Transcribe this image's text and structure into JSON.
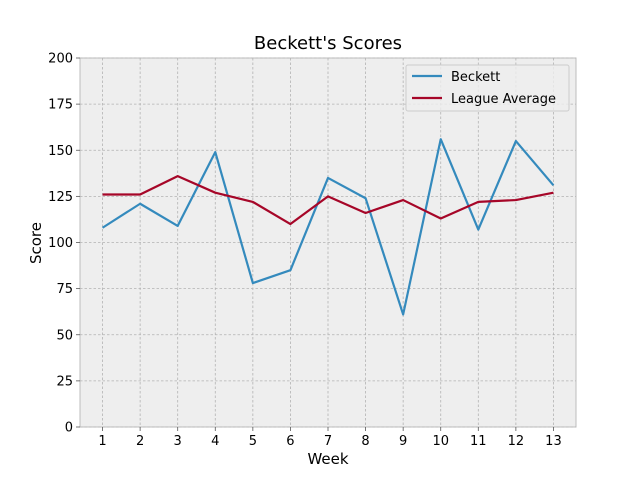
{
  "chart_data": {
    "type": "line",
    "title": "Beckett's Scores",
    "xlabel": "Week",
    "ylabel": "Score",
    "x": [
      1,
      2,
      3,
      4,
      5,
      6,
      7,
      8,
      9,
      10,
      11,
      12,
      13
    ],
    "xlim": [
      0.4,
      13.6
    ],
    "ylim": [
      0,
      200
    ],
    "yticks": [
      0,
      25,
      50,
      75,
      100,
      125,
      150,
      175,
      200
    ],
    "grid": true,
    "legend_position": "top-right",
    "series": [
      {
        "name": "Beckett",
        "color": "#348abd",
        "values": [
          108,
          121,
          109,
          149,
          78,
          85,
          135,
          124,
          61,
          156,
          107,
          155,
          131
        ]
      },
      {
        "name": "League Average",
        "color": "#a60628",
        "values": [
          126,
          126,
          136,
          127,
          122,
          110,
          125,
          116,
          123,
          113,
          122,
          123,
          127
        ]
      }
    ]
  }
}
